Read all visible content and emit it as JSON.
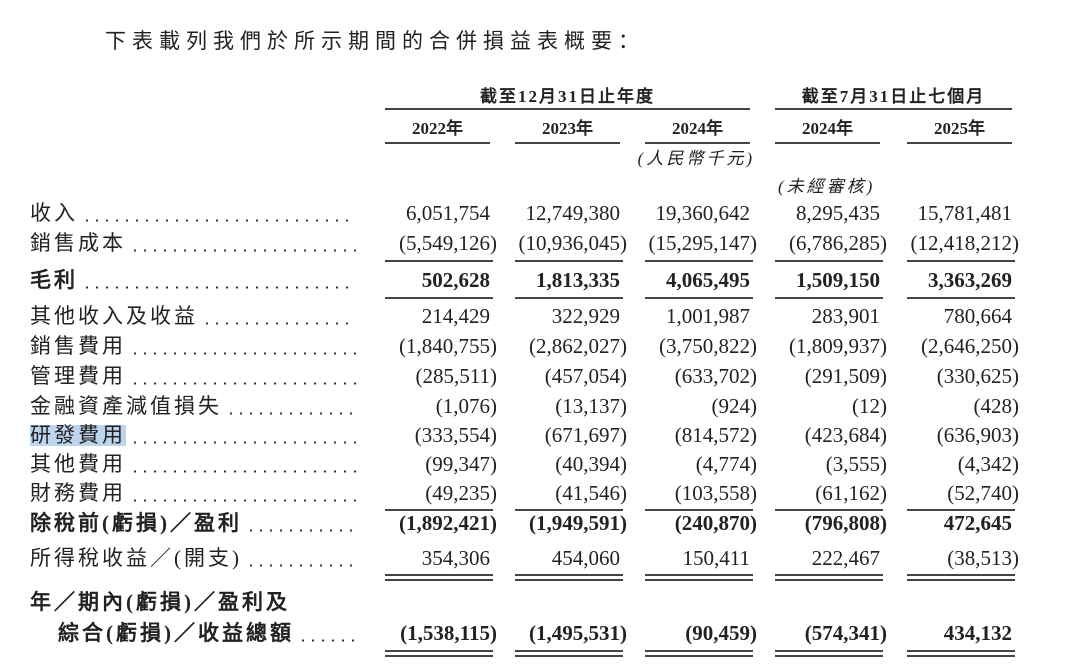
{
  "intro": "下表載列我們於所示期間的合併損益表概要：",
  "column_groups": [
    "截至12月31日止年度",
    "截至7月31日止七個月"
  ],
  "columns": [
    "2022年",
    "2023年",
    "2024年",
    "2024年",
    "2025年"
  ],
  "unit_note": "(人民幣千元)",
  "unaudited_note": "(未經審核)",
  "rows": [
    {
      "label": "收入",
      "values": [
        "6,051,754",
        "12,749,380",
        "19,360,642",
        "8,295,435",
        "15,781,481"
      ]
    },
    {
      "label": "銷售成本",
      "values": [
        "(5,549,126)",
        "(10,936,045)",
        "(15,295,147)",
        "(6,786,285)",
        "(12,418,212)"
      ]
    },
    {
      "label": "毛利",
      "values": [
        "502,628",
        "1,813,335",
        "4,065,495",
        "1,509,150",
        "3,363,269"
      ]
    },
    {
      "label": "其他收入及收益",
      "values": [
        "214,429",
        "322,929",
        "1,001,987",
        "283,901",
        "780,664"
      ]
    },
    {
      "label": "銷售費用",
      "values": [
        "(1,840,755)",
        "(2,862,027)",
        "(3,750,822)",
        "(1,809,937)",
        "(2,646,250)"
      ]
    },
    {
      "label": "管理費用",
      "values": [
        "(285,511)",
        "(457,054)",
        "(633,702)",
        "(291,509)",
        "(330,625)"
      ]
    },
    {
      "label": "金融資產減值損失",
      "values": [
        "(1,076)",
        "(13,137)",
        "(924)",
        "(12)",
        "(428)"
      ]
    },
    {
      "label": "研發費用",
      "values": [
        "(333,554)",
        "(671,697)",
        "(814,572)",
        "(423,684)",
        "(636,903)"
      ]
    },
    {
      "label": "其他費用",
      "values": [
        "(99,347)",
        "(40,394)",
        "(4,774)",
        "(3,555)",
        "(4,342)"
      ]
    },
    {
      "label": "財務費用",
      "values": [
        "(49,235)",
        "(41,546)",
        "(103,558)",
        "(61,162)",
        "(52,740)"
      ]
    },
    {
      "label": "除稅前(虧損)／盈利",
      "values": [
        "(1,892,421)",
        "(1,949,591)",
        "(240,870)",
        "(796,808)",
        "472,645"
      ]
    },
    {
      "label": "所得稅收益／(開支)",
      "values": [
        "354,306",
        "454,060",
        "150,411",
        "222,467",
        "(38,513)"
      ]
    },
    {
      "label": [
        "年／期內(虧損)／盈利及",
        "綜合(虧損)／收益總額"
      ],
      "values": [
        "(1,538,115)",
        "(1,495,531)",
        "(90,459)",
        "(574,341)",
        "434,132"
      ]
    }
  ]
}
